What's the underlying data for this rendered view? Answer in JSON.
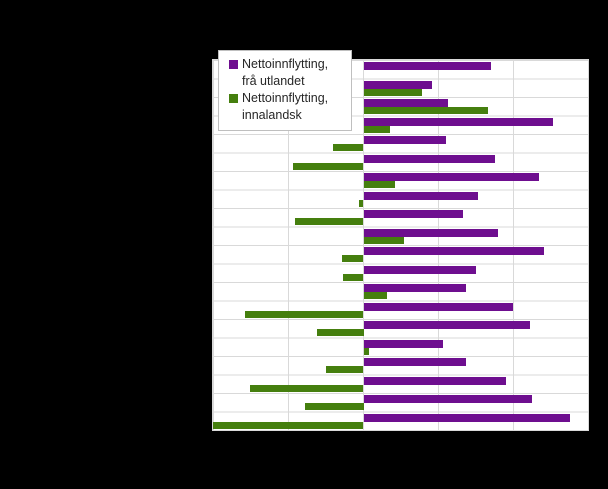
{
  "notes": "Static statistics chart on black background; chart title, category labels and axis tick labels are not visible in the screenshot (rendered black-on-black). Bar values are measured in x-gridline units (1 unit = one gridline interval).",
  "colors": {
    "background": "#000000",
    "plot_background": "#ffffff",
    "gridline": "#d9d9d9",
    "legend_border": "#bfbfbf",
    "legend_text": "#262626",
    "series_purple": "#6e0e8f",
    "series_green": "#457f0e"
  },
  "legend": {
    "items": [
      {
        "line1": "Nettoinnflytting,",
        "line2": "frå utlandet",
        "color": "#6e0e8f"
      },
      {
        "line1": "Nettoinnflytting,",
        "line2": "innalandsk",
        "color": "#457f0e"
      }
    ]
  },
  "chart_data": {
    "type": "bar",
    "orientation": "horizontal",
    "n_categories": 20,
    "categories_visible": false,
    "xlim": [
      -2,
      3
    ],
    "x_gridline_interval": 1,
    "value_unit": "gridline intervals (axis tick labels not visible in screenshot)",
    "grid": true,
    "legend_position": "top-left-inside",
    "series": [
      {
        "name": "Nettoinnflytting, frå utlandet",
        "key": "utlandet",
        "color": "#6e0e8f",
        "values": [
          1.69,
          0.91,
          1.12,
          2.52,
          1.09,
          1.75,
          2.33,
          1.52,
          1.32,
          1.79,
          2.4,
          1.49,
          1.36,
          1.98,
          2.21,
          1.05,
          1.36,
          1.89,
          2.24,
          2.74
        ]
      },
      {
        "name": "Nettoinnflytting, innalandsk",
        "key": "innalandsk",
        "color": "#457f0e",
        "values": [
          0,
          0.77,
          1.65,
          0.35,
          -0.4,
          -0.93,
          0.41,
          -0.05,
          -0.91,
          0.53,
          -0.28,
          -0.27,
          0.31,
          -1.57,
          -0.62,
          0.07,
          -0.49,
          -1.51,
          -0.78,
          -2.0
        ]
      }
    ]
  }
}
